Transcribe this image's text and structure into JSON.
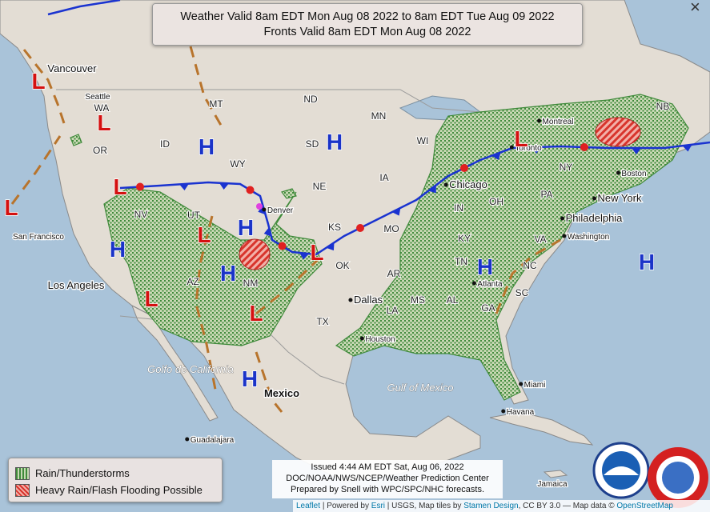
{
  "header": {
    "lines": [
      "Weather Valid 8am EDT Mon Aug 08 2022 to 8am EDT Tue Aug 09 2022",
      "Fronts Valid 8am EDT Mon Aug 08 2022"
    ]
  },
  "close": "×",
  "legend": {
    "items": [
      "Rain/Thunderstorms",
      "Heavy Rain/Flash Flooding Possible"
    ]
  },
  "issued": {
    "lines": [
      "Issued 4:44 AM EDT Sat, Aug 06, 2022",
      "DOC/NOAA/NWS/NCEP/Weather Prediction Center",
      "Prepared by Snell with WPC/SPC/NHC forecasts."
    ]
  },
  "attribution": [
    "Leaflet",
    "| Powered by",
    "Esri",
    "| USGS, Map tiles by",
    "Stamen Design",
    ", CC BY 3.0 — Map data ©",
    "OpenStreetMap"
  ],
  "places": [
    "Vancouver",
    "Seattle",
    "San Francisco",
    "Los Angeles",
    "Denver",
    "Dallas",
    "Houston",
    "Chicago",
    "Toronto",
    "Montreal",
    "Boston",
    "New York",
    "Philadelphia",
    "Washington",
    "Atlanta",
    "Miami",
    "Havana",
    "Jamaica",
    "Mexico",
    "Guadalajara",
    "Golfo de California",
    "Gulf of Mexico"
  ],
  "states": [
    "WA",
    "OR",
    "ID",
    "MT",
    "WY",
    "NV",
    "UT",
    "AZ",
    "NM",
    "ND",
    "SD",
    "NE",
    "KS",
    "OK",
    "TX",
    "MN",
    "IA",
    "MO",
    "AR",
    "LA",
    "MS",
    "AL",
    "GA",
    "TN",
    "KY",
    "IN",
    "OH",
    "WI",
    "PA",
    "NY",
    "VA",
    "NC",
    "SC",
    "NB"
  ],
  "pressure_centers": [
    "H",
    "H",
    "H",
    "H",
    "H",
    "H",
    "H",
    "H",
    "L",
    "L",
    "L",
    "L",
    "L",
    "L",
    "L",
    "L",
    "L"
  ]
}
